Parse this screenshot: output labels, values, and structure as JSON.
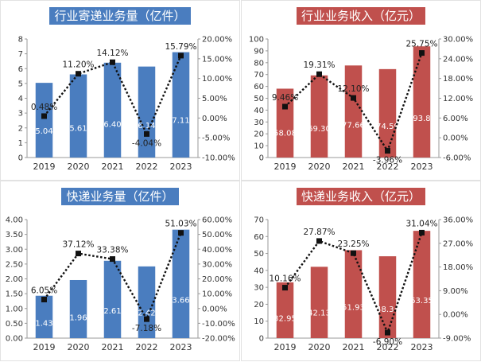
{
  "chart_data": [
    {
      "type": "bar",
      "title": "行业寄递业务量（亿件）",
      "color": "#4a7dbf",
      "title_bg": "#4a7dbf",
      "categories": [
        "2019",
        "2020",
        "2021",
        "2022",
        "2023"
      ],
      "values": [
        5.04,
        5.61,
        6.4,
        6.14,
        7.11
      ],
      "value_labels": [
        "5.04",
        "5.61",
        "6.40",
        "6.14",
        "7.11"
      ],
      "growth": [
        0.48,
        11.2,
        14.12,
        -4.04,
        15.79
      ],
      "growth_labels": [
        "0.48%",
        "11.20%",
        "14.12%",
        "-4.04%",
        "15.79%"
      ],
      "ylim": [
        0,
        8
      ],
      "yticks": [
        "0",
        "1",
        "2",
        "3",
        "4",
        "5",
        "6",
        "7",
        "8"
      ],
      "ylim_right": [
        -10,
        20
      ],
      "yticks_right": [
        "-10.00%",
        "-5.00%",
        "0.00%",
        "5.00%",
        "10.00%",
        "15.00%",
        "20.00%"
      ]
    },
    {
      "type": "bar",
      "title": "行业业务收入（亿元）",
      "color": "#c0504d",
      "title_bg": "#c0504d",
      "categories": [
        "2019",
        "2020",
        "2021",
        "2022",
        "2023"
      ],
      "values": [
        58.08,
        69.3,
        77.66,
        74.59,
        93.8
      ],
      "value_labels": [
        "58.08",
        "69.30",
        "77.66",
        "74.59",
        "93.8"
      ],
      "growth": [
        9.46,
        19.31,
        12.1,
        -3.96,
        25.75
      ],
      "growth_labels": [
        "9.46%",
        "19.31%",
        "12.10%",
        "-3.96%",
        "25.75%"
      ],
      "ylim": [
        0,
        100
      ],
      "yticks": [
        "0",
        "10",
        "20",
        "30",
        "40",
        "50",
        "60",
        "70",
        "80",
        "90",
        "100"
      ],
      "ylim_right": [
        -6,
        30
      ],
      "yticks_right": [
        "-6.00%",
        "0.00%",
        "6.00%",
        "12.00%",
        "18.00%",
        "24.00%",
        "30.00%"
      ]
    },
    {
      "type": "bar",
      "title": "快递业务量（亿件）",
      "color": "#4a7dbf",
      "title_bg": "#4a7dbf",
      "categories": [
        "2019",
        "2020",
        "2021",
        "2022",
        "2023"
      ],
      "values": [
        1.43,
        1.96,
        2.61,
        2.42,
        3.66
      ],
      "value_labels": [
        "1.43",
        "1.96",
        "2.61",
        "2.42",
        "3.66"
      ],
      "growth": [
        6.05,
        37.12,
        33.38,
        -7.18,
        51.03
      ],
      "growth_labels": [
        "6.05%",
        "37.12%",
        "33.38%",
        "-7.18%",
        "51.03%"
      ],
      "ylim": [
        0,
        4
      ],
      "yticks": [
        "0.00",
        "0.50",
        "1.00",
        "1.50",
        "2.00",
        "2.50",
        "3.00",
        "3.50",
        "4.00"
      ],
      "ylim_right": [
        -20,
        60
      ],
      "yticks_right": [
        "-20.00%",
        "-10.00%",
        "0.00%",
        "10.00%",
        "20.00%",
        "30.00%",
        "40.00%",
        "50.00%",
        "60.00%"
      ]
    },
    {
      "type": "bar",
      "title": "快递业务收入（亿元）",
      "color": "#c0504d",
      "title_bg": "#c0504d",
      "categories": [
        "2019",
        "2020",
        "2021",
        "2022",
        "2023"
      ],
      "values": [
        32.95,
        42.13,
        51.93,
        48.34,
        63.35
      ],
      "value_labels": [
        "32.95",
        "42.13",
        "51.93",
        "48.34",
        "63.35"
      ],
      "growth": [
        10.16,
        27.87,
        23.25,
        -6.9,
        31.04
      ],
      "growth_labels": [
        "10.16%",
        "27.87%",
        "23.25%",
        "-6.90%",
        "31.04%"
      ],
      "ylim": [
        0,
        70
      ],
      "yticks": [
        "0",
        "10",
        "20",
        "30",
        "40",
        "50",
        "60",
        "70"
      ],
      "ylim_right": [
        -9,
        36
      ],
      "yticks_right": [
        "-9.00%",
        "0.00%",
        "9.00%",
        "18.00%",
        "27.00%",
        "36.00%"
      ]
    }
  ]
}
